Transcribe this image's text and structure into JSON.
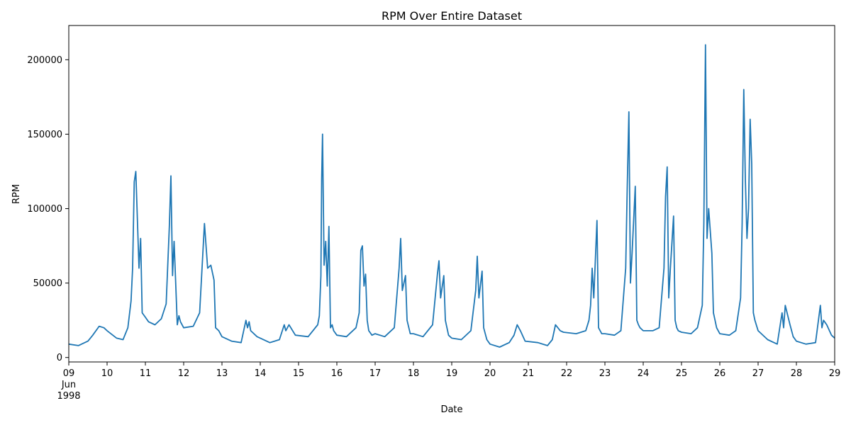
{
  "chart_data": {
    "type": "line",
    "title": "RPM Over Entire Dataset",
    "xlabel": "Date",
    "ylabel": "RPM",
    "xlim": [
      "1998-06-09",
      "1998-06-29"
    ],
    "ylim": [
      -3000,
      223000
    ],
    "grid": false,
    "legend": "none",
    "y_ticks": [
      0,
      50000,
      100000,
      150000,
      200000
    ],
    "x_ticks": [
      {
        "date": "1998-06-09",
        "label": "09",
        "sub": [
          "Jun",
          "1998"
        ]
      },
      {
        "date": "1998-06-10",
        "label": "10"
      },
      {
        "date": "1998-06-11",
        "label": "11"
      },
      {
        "date": "1998-06-12",
        "label": "12"
      },
      {
        "date": "1998-06-13",
        "label": "13"
      },
      {
        "date": "1998-06-14",
        "label": "14"
      },
      {
        "date": "1998-06-15",
        "label": "15"
      },
      {
        "date": "1998-06-16",
        "label": "16"
      },
      {
        "date": "1998-06-17",
        "label": "17"
      },
      {
        "date": "1998-06-18",
        "label": "18"
      },
      {
        "date": "1998-06-19",
        "label": "19"
      },
      {
        "date": "1998-06-20",
        "label": "20"
      },
      {
        "date": "1998-06-21",
        "label": "21"
      },
      {
        "date": "1998-06-22",
        "label": "22"
      },
      {
        "date": "1998-06-23",
        "label": "23"
      },
      {
        "date": "1998-06-24",
        "label": "24"
      },
      {
        "date": "1998-06-25",
        "label": "25"
      },
      {
        "date": "1998-06-26",
        "label": "26"
      },
      {
        "date": "1998-06-27",
        "label": "27"
      },
      {
        "date": "1998-06-28",
        "label": "28"
      },
      {
        "date": "1998-06-29",
        "label": "29"
      }
    ],
    "series": [
      {
        "color": "#1f77b4",
        "x": [
          "1998-06-09 00:00",
          "1998-06-09 06:00",
          "1998-06-09 12:00",
          "1998-06-09 15:00",
          "1998-06-09 19:00",
          "1998-06-09 22:00",
          "1998-06-10 00:00",
          "1998-06-10 06:00",
          "1998-06-10 10:00",
          "1998-06-10 13:00",
          "1998-06-10 15:00",
          "1998-06-10 16:00",
          "1998-06-10 17:00",
          "1998-06-10 18:00",
          "1998-06-10 20:00",
          "1998-06-10 21:00",
          "1998-06-10 22:00",
          "1998-06-11 00:00",
          "1998-06-11 02:00",
          "1998-06-11 06:00",
          "1998-06-11 10:00",
          "1998-06-11 13:00",
          "1998-06-11 15:00",
          "1998-06-11 16:00",
          "1998-06-11 17:00",
          "1998-06-11 18:00",
          "1998-06-11 20:00",
          "1998-06-11 21:00",
          "1998-06-11 22:00",
          "1998-06-12 00:00",
          "1998-06-12 06:00",
          "1998-06-12 10:00",
          "1998-06-12 13:00",
          "1998-06-12 15:00",
          "1998-06-12 17:00",
          "1998-06-12 19:00",
          "1998-06-12 20:00",
          "1998-06-12 22:00",
          "1998-06-13 00:00",
          "1998-06-13 06:00",
          "1998-06-13 12:00",
          "1998-06-13 15:00",
          "1998-06-13 16:00",
          "1998-06-13 17:00",
          "1998-06-13 18:00",
          "1998-06-13 22:00",
          "1998-06-14 06:00",
          "1998-06-14 12:00",
          "1998-06-14 15:00",
          "1998-06-14 16:00",
          "1998-06-14 18:00",
          "1998-06-14 22:00",
          "1998-06-15 06:00",
          "1998-06-15 12:00",
          "1998-06-15 13:00",
          "1998-06-15 14:00",
          "1998-06-15 14:30",
          "1998-06-15 15:00",
          "1998-06-15 16:00",
          "1998-06-15 17:00",
          "1998-06-15 18:00",
          "1998-06-15 19:00",
          "1998-06-15 20:00",
          "1998-06-15 21:00",
          "1998-06-15 22:00",
          "1998-06-16 00:00",
          "1998-06-16 06:00",
          "1998-06-16 12:00",
          "1998-06-16 14:00",
          "1998-06-16 15:00",
          "1998-06-16 16:00",
          "1998-06-16 17:00",
          "1998-06-16 18:00",
          "1998-06-16 19:00",
          "1998-06-16 20:00",
          "1998-06-16 22:00",
          "1998-06-17 00:00",
          "1998-06-17 06:00",
          "1998-06-17 12:00",
          "1998-06-17 15:00",
          "1998-06-17 16:00",
          "1998-06-17 17:00",
          "1998-06-17 19:00",
          "1998-06-17 20:00",
          "1998-06-17 22:00",
          "1998-06-18 00:00",
          "1998-06-18 06:00",
          "1998-06-18 12:00",
          "1998-06-18 15:00",
          "1998-06-18 16:00",
          "1998-06-18 17:00",
          "1998-06-18 19:00",
          "1998-06-18 20:00",
          "1998-06-18 22:00",
          "1998-06-19 00:00",
          "1998-06-19 06:00",
          "1998-06-19 12:00",
          "1998-06-19 15:00",
          "1998-06-19 16:00",
          "1998-06-19 17:00",
          "1998-06-19 19:00",
          "1998-06-19 20:00",
          "1998-06-19 22:00",
          "1998-06-20 00:00",
          "1998-06-20 06:00",
          "1998-06-20 12:00",
          "1998-06-20 15:00",
          "1998-06-20 17:00",
          "1998-06-20 19:00",
          "1998-06-20 22:00",
          "1998-06-21 06:00",
          "1998-06-21 12:00",
          "1998-06-21 15:00",
          "1998-06-21 17:00",
          "1998-06-21 20:00",
          "1998-06-21 22:00",
          "1998-06-22 06:00",
          "1998-06-22 12:00",
          "1998-06-22 14:00",
          "1998-06-22 15:00",
          "1998-06-22 16:00",
          "1998-06-22 17:00",
          "1998-06-22 19:00",
          "1998-06-22 20:00",
          "1998-06-22 22:00",
          "1998-06-23 00:00",
          "1998-06-23 06:00",
          "1998-06-23 10:00",
          "1998-06-23 13:00",
          "1998-06-23 14:00",
          "1998-06-23 15:00",
          "1998-06-23 16:00",
          "1998-06-23 17:00",
          "1998-06-23 19:00",
          "1998-06-23 20:00",
          "1998-06-23 21:00",
          "1998-06-23 22:00",
          "1998-06-24 00:00",
          "1998-06-24 06:00",
          "1998-06-24 10:00",
          "1998-06-24 13:00",
          "1998-06-24 14:00",
          "1998-06-24 15:00",
          "1998-06-24 16:00",
          "1998-06-24 17:00",
          "1998-06-24 19:00",
          "1998-06-24 20:00",
          "1998-06-24 21:00",
          "1998-06-24 22:00",
          "1998-06-25 00:00",
          "1998-06-25 06:00",
          "1998-06-25 10:00",
          "1998-06-25 13:00",
          "1998-06-25 14:00",
          "1998-06-25 15:00",
          "1998-06-25 16:00",
          "1998-06-25 17:00",
          "1998-06-25 19:00",
          "1998-06-25 20:00",
          "1998-06-25 21:00",
          "1998-06-25 22:00",
          "1998-06-26 00:00",
          "1998-06-26 06:00",
          "1998-06-26 10:00",
          "1998-06-26 13:00",
          "1998-06-26 14:00",
          "1998-06-26 15:00",
          "1998-06-26 16:00",
          "1998-06-26 17:00",
          "1998-06-26 18:00",
          "1998-06-26 19:00",
          "1998-06-26 20:00",
          "1998-06-26 21:00",
          "1998-06-26 22:00",
          "1998-06-27 00:00",
          "1998-06-27 06:00",
          "1998-06-27 12:00",
          "1998-06-27 15:00",
          "1998-06-27 16:00",
          "1998-06-27 17:00",
          "1998-06-27 20:00",
          "1998-06-27 22:00",
          "1998-06-28 00:00",
          "1998-06-28 06:00",
          "1998-06-28 12:00",
          "1998-06-28 15:00",
          "1998-06-28 16:00",
          "1998-06-28 17:00",
          "1998-06-28 19:00",
          "1998-06-28 22:00",
          "1998-06-29 00:00"
        ],
        "values": [
          9000,
          8000,
          11000,
          15000,
          21000,
          20000,
          18000,
          13000,
          12000,
          20000,
          38000,
          60000,
          118000,
          125000,
          60000,
          80000,
          30000,
          27000,
          24000,
          22000,
          26000,
          36000,
          88000,
          122000,
          55000,
          78000,
          22000,
          28000,
          24000,
          20000,
          21000,
          30000,
          90000,
          60000,
          62000,
          52000,
          20000,
          18000,
          14000,
          11000,
          10000,
          25000,
          20000,
          24000,
          18000,
          14000,
          10000,
          12000,
          22000,
          18000,
          22000,
          15000,
          14000,
          22000,
          28000,
          55000,
          120000,
          150000,
          62000,
          78000,
          48000,
          88000,
          20000,
          22000,
          18000,
          15000,
          14000,
          20000,
          30000,
          72000,
          75000,
          48000,
          56000,
          25000,
          18000,
          15000,
          16000,
          14000,
          20000,
          60000,
          80000,
          45000,
          55000,
          25000,
          16000,
          16000,
          14000,
          22000,
          56000,
          65000,
          40000,
          55000,
          25000,
          15000,
          13000,
          12000,
          18000,
          45000,
          68000,
          40000,
          58000,
          20000,
          12000,
          9000,
          7000,
          10000,
          15000,
          22000,
          18000,
          11000,
          10000,
          8000,
          12000,
          22000,
          18000,
          17000,
          16000,
          18000,
          25000,
          35000,
          60000,
          40000,
          92000,
          20000,
          16000,
          16000,
          15000,
          18000,
          60000,
          115000,
          165000,
          50000,
          70000,
          115000,
          25000,
          22000,
          20000,
          18000,
          18000,
          20000,
          60000,
          108000,
          128000,
          40000,
          60000,
          95000,
          25000,
          20000,
          18000,
          17000,
          16000,
          20000,
          35000,
          90000,
          210000,
          80000,
          100000,
          70000,
          30000,
          25000,
          20000,
          16000,
          15000,
          18000,
          40000,
          90000,
          180000,
          120000,
          80000,
          100000,
          160000,
          130000,
          30000,
          25000,
          18000,
          12000,
          9000,
          30000,
          20000,
          35000,
          22000,
          14000,
          11000,
          9000,
          10000,
          35000,
          20000,
          25000,
          22000,
          15000,
          13000
        ]
      }
    ]
  }
}
